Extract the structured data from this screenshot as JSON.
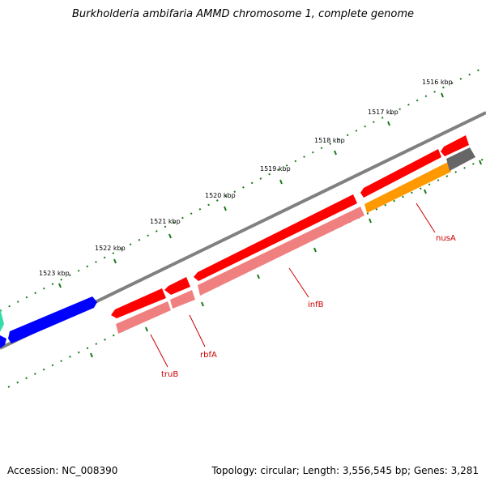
{
  "title": "Burkholderia ambifaria AMMD chromosome 1, complete genome",
  "footer": {
    "accession": "Accession: NC_008390",
    "summary": "Topology: circular; Length: 3,556,545 bp; Genes: 3,281"
  },
  "ruler": {
    "labels": [
      "1516 kbp",
      "1517 kbp",
      "1518 kbp",
      "1519 kbp",
      "1520 kbp",
      "1521 kbp",
      "1522 kbp",
      "1523 kbp"
    ],
    "tick_color": "#1a7a1a"
  },
  "genes": [
    {
      "name": "truB",
      "color": "#ff0000",
      "shadow_color": "#f08080"
    },
    {
      "name": "rbfA",
      "color": "#ff0000",
      "shadow_color": "#f08080"
    },
    {
      "name": "infB",
      "color": "#ff0000",
      "shadow_color": "#f08080"
    },
    {
      "name": "nusA",
      "color": "#ff0000",
      "shadow_color": "#ff9900"
    }
  ],
  "colors": {
    "backbone": "#808080",
    "other_gene": "#0000ff",
    "partial_gene": "#33ddaa",
    "gray_feature": "#666666",
    "label_line": "#cc0000"
  }
}
